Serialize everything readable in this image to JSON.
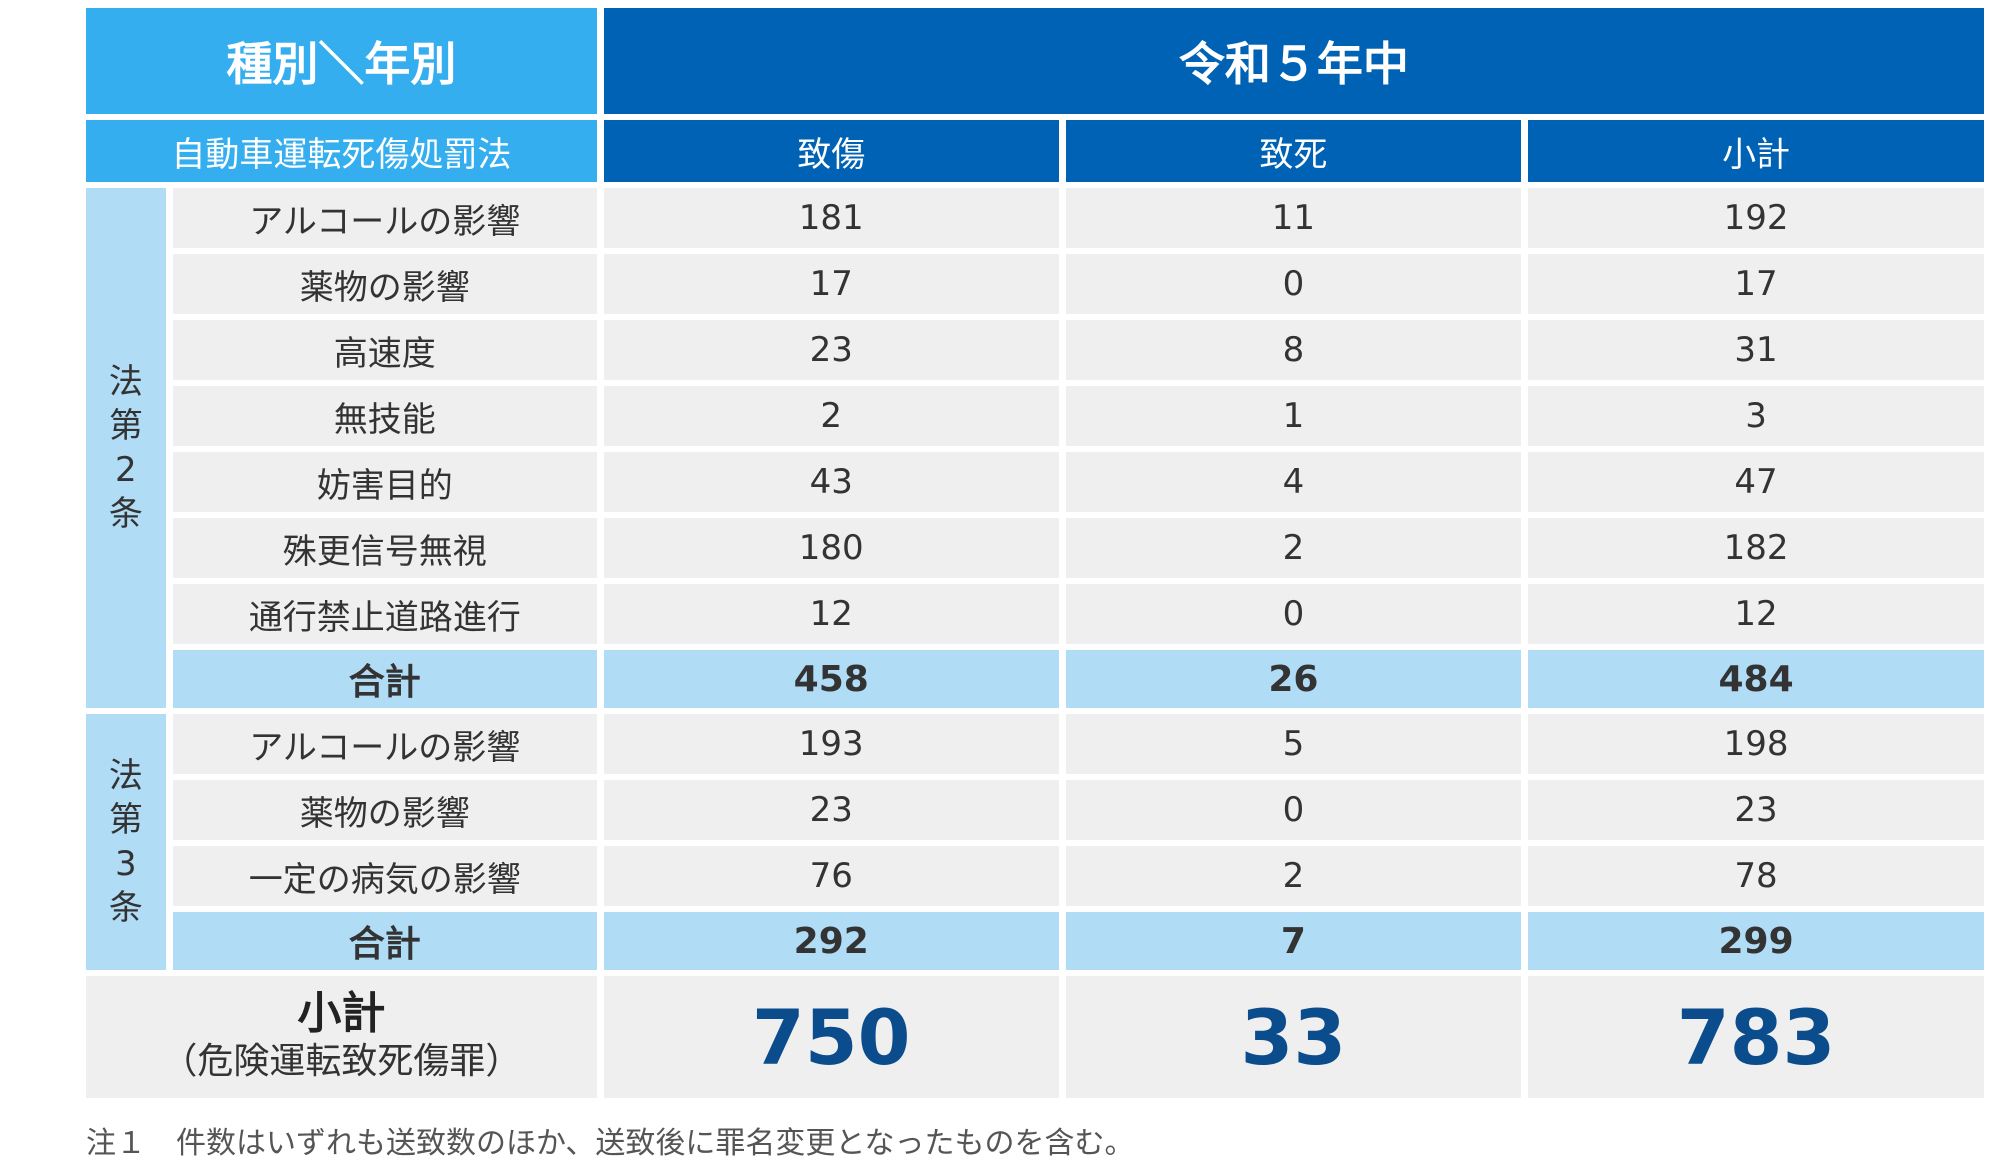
{
  "header": {
    "corner": "種別＼年別",
    "year": "令和５年中",
    "law_label": "自動車運転死傷処罰法",
    "columns": [
      "致傷",
      "致死",
      "小計"
    ]
  },
  "section2": {
    "label_chars": [
      "法",
      "第",
      "2",
      "条"
    ],
    "rows": [
      {
        "category": "アルコールの影響",
        "values": [
          "181",
          "11",
          "192"
        ]
      },
      {
        "category": "薬物の影響",
        "values": [
          "17",
          "0",
          "17"
        ]
      },
      {
        "category": "高速度",
        "values": [
          "23",
          "8",
          "31"
        ]
      },
      {
        "category": "無技能",
        "values": [
          "2",
          "1",
          "3"
        ]
      },
      {
        "category": "妨害目的",
        "values": [
          "43",
          "4",
          "47"
        ]
      },
      {
        "category": "殊更信号無視",
        "values": [
          "180",
          "2",
          "182"
        ]
      },
      {
        "category": "通行禁止道路進行",
        "values": [
          "12",
          "0",
          "12"
        ]
      }
    ],
    "total": {
      "label": "合計",
      "values": [
        "458",
        "26",
        "484"
      ]
    }
  },
  "section3": {
    "label_chars": [
      "法",
      "第",
      "3",
      "条"
    ],
    "rows": [
      {
        "category": "アルコールの影響",
        "values": [
          "193",
          "5",
          "198"
        ]
      },
      {
        "category": "薬物の影響",
        "values": [
          "23",
          "0",
          "23"
        ]
      },
      {
        "category": "一定の病気の影響",
        "values": [
          "76",
          "2",
          "78"
        ]
      }
    ],
    "total": {
      "label": "合計",
      "values": [
        "292",
        "7",
        "299"
      ]
    }
  },
  "grand_total": {
    "label": "小計",
    "sublabel": "（危険運転致死傷罪）",
    "values": [
      "750",
      "33",
      "783"
    ]
  },
  "note": "注１　件数はいずれも送致数のほか、送致後に罪名変更となったものを含む。",
  "colors": {
    "header_light": "#35aef0",
    "header_dark": "#0062b4",
    "total_bg": "#b1dcf6",
    "cell_bg": "#efefef",
    "grand_text": "#0b4c8c"
  }
}
